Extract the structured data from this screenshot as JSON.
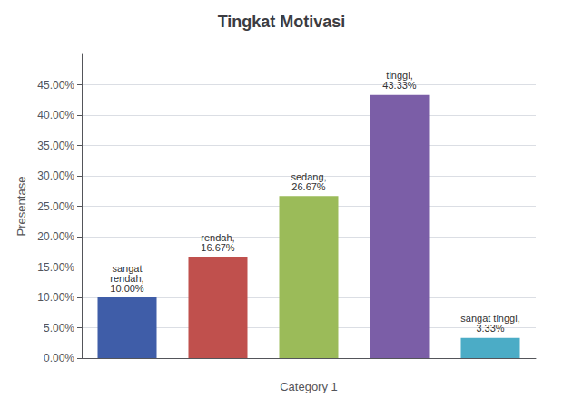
{
  "chart_data": {
    "type": "bar",
    "title": "Tingkat Motivasi",
    "xlabel": "Category 1",
    "ylabel": "Presentase",
    "categories": [
      null,
      null,
      null,
      null,
      null
    ],
    "values": [
      0.1,
      0.1667,
      0.2667,
      0.4333,
      0.0333
    ],
    "value_labels": [
      "sangat\nrendah,\n10.00%",
      "rendah,\n16.67%",
      "sedang,\n26.67%",
      "tinggi,\n43.33%",
      "sangat tinggi,\n3.33%"
    ],
    "colors": [
      "#3F5DA8",
      "#C0504D",
      "#9BBB59",
      "#7B5EA7",
      "#4BACC6"
    ],
    "ylim": [
      0,
      0.5
    ],
    "yticks": [
      {
        "value": 0.0,
        "label": "0.00%"
      },
      {
        "value": 0.05,
        "label": "5.00%"
      },
      {
        "value": 0.1,
        "label": "10.00%"
      },
      {
        "value": 0.15,
        "label": "15.00%"
      },
      {
        "value": 0.2,
        "label": "20.00%"
      },
      {
        "value": 0.25,
        "label": "25.00%"
      },
      {
        "value": 0.3,
        "label": "30.00%"
      },
      {
        "value": 0.35,
        "label": "35.00%"
      },
      {
        "value": 0.4,
        "label": "40.00%"
      },
      {
        "value": 0.45,
        "label": "45.00%"
      }
    ],
    "grid": true,
    "data_labels": true,
    "tick_labels": "y"
  }
}
